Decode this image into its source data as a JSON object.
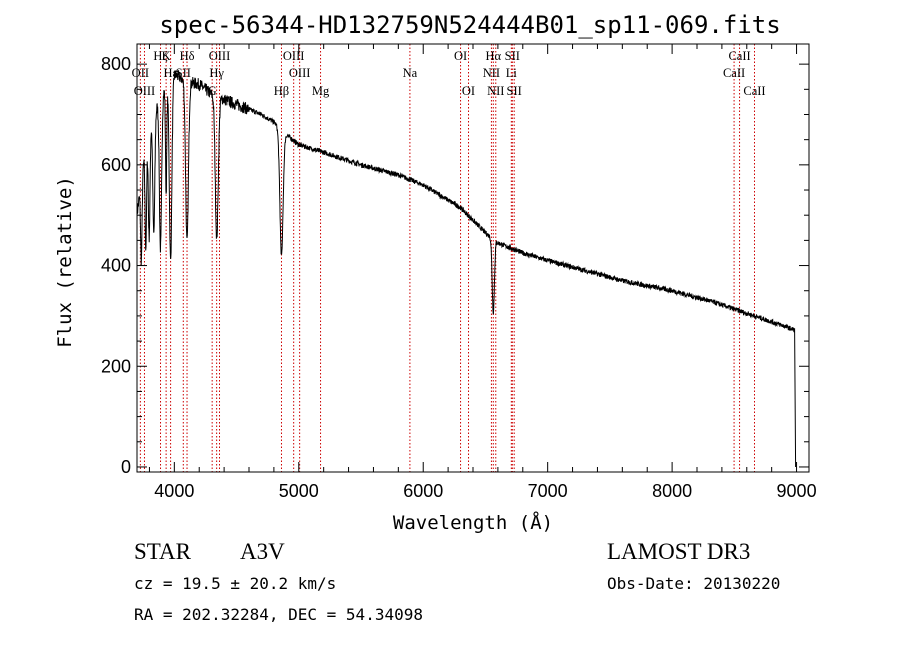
{
  "chart_data": {
    "type": "line",
    "title": "spec-56344-HD132759N524444B01_sp11-069.fits",
    "xlabel": "Wavelength (Å)",
    "ylabel": "Flux (relative)",
    "xlim": [
      3700,
      9100
    ],
    "ylim": [
      -10,
      840
    ],
    "x_ticks": [
      4000,
      5000,
      6000,
      7000,
      8000,
      9000
    ],
    "x_tick_labels": [
      "4000",
      "5000",
      "6000",
      "7000",
      "8000",
      "9000"
    ],
    "y_ticks": [
      0,
      200,
      400,
      600,
      800
    ],
    "y_tick_labels": [
      "0",
      "200",
      "400",
      "600",
      "800"
    ],
    "continuum": {
      "x": [
        3700,
        3750,
        3800,
        3900,
        4000,
        4100,
        4200,
        4300,
        4400,
        4500,
        4600,
        4700,
        4800,
        4900,
        5000,
        5200,
        5500,
        5800,
        6000,
        6200,
        6300,
        6500,
        6600,
        6800,
        7000,
        7300,
        7600,
        8000,
        8300,
        8600,
        8900,
        8980
      ],
      "y": [
        500,
        600,
        680,
        740,
        780,
        765,
        760,
        740,
        730,
        720,
        710,
        700,
        685,
        660,
        640,
        625,
        600,
        580,
        560,
        530,
        515,
        465,
        445,
        425,
        410,
        390,
        370,
        350,
        330,
        305,
        280,
        272
      ]
    },
    "absorption_features": [
      {
        "x": 3735,
        "depth": 160,
        "width": 6
      },
      {
        "x": 3771,
        "depth": 200,
        "width": 6
      },
      {
        "x": 3798,
        "depth": 220,
        "width": 7
      },
      {
        "x": 3835,
        "depth": 240,
        "width": 8
      },
      {
        "x": 3889,
        "depth": 300,
        "width": 9
      },
      {
        "x": 3934,
        "depth": 210,
        "width": 5
      },
      {
        "x": 3970,
        "depth": 360,
        "width": 10
      },
      {
        "x": 4102,
        "depth": 320,
        "width": 11
      },
      {
        "x": 4341,
        "depth": 280,
        "width": 12
      },
      {
        "x": 4861,
        "depth": 250,
        "width": 13
      },
      {
        "x": 6563,
        "depth": 145,
        "width": 9
      }
    ],
    "line_markers": [
      {
        "name": "Hζ",
        "x": 3889,
        "row": 0
      },
      {
        "name": "K",
        "x": 3934,
        "row": 0
      },
      {
        "name": "Hδ",
        "x": 4102,
        "row": 0
      },
      {
        "name": "OIII",
        "x": 4363,
        "row": 0
      },
      {
        "name": "OIII",
        "x": 4959,
        "row": 0
      },
      {
        "name": "OI",
        "x": 6300,
        "row": 0
      },
      {
        "name": "Hα",
        "x": 6563,
        "row": 0
      },
      {
        "name": "SII",
        "x": 6716,
        "row": 0
      },
      {
        "name": "CaII",
        "x": 8542,
        "row": 0
      },
      {
        "name": "OII",
        "x": 3727,
        "row": 1
      },
      {
        "name": "Hε",
        "x": 3970,
        "row": 1
      },
      {
        "name": "SII",
        "x": 4072,
        "row": 1
      },
      {
        "name": "Hγ",
        "x": 4340,
        "row": 1
      },
      {
        "name": "OIII",
        "x": 5007,
        "row": 1
      },
      {
        "name": "Na",
        "x": 5893,
        "row": 1
      },
      {
        "name": "NII",
        "x": 6548,
        "row": 1
      },
      {
        "name": "Li",
        "x": 6708,
        "row": 1
      },
      {
        "name": "CaII",
        "x": 8498,
        "row": 1
      },
      {
        "name": "OIII",
        "x": 3760,
        "row": 2
      },
      {
        "name": "Hβ",
        "x": 4861,
        "row": 2
      },
      {
        "name": "Mg",
        "x": 5175,
        "row": 2
      },
      {
        "name": "G",
        "x": 4304,
        "row": 2
      },
      {
        "name": "OI",
        "x": 6364,
        "row": 2
      },
      {
        "name": "NII",
        "x": 6583,
        "row": 2
      },
      {
        "name": "SII",
        "x": 6731,
        "row": 2
      },
      {
        "name": "CaII",
        "x": 8662,
        "row": 2
      }
    ]
  },
  "info": {
    "object_type": "STAR",
    "spectral_class": "A3V",
    "survey": "LAMOST DR3",
    "redshift_line": "cz = 19.5 ± 20.2 km/s",
    "obs_date_line": "Obs-Date: 20130220",
    "coords_line": "RA = 202.32284, DEC =  54.34098"
  },
  "colors": {
    "spectrum": "#000000",
    "marker_line": "#cc0000",
    "axis": "#000000"
  }
}
